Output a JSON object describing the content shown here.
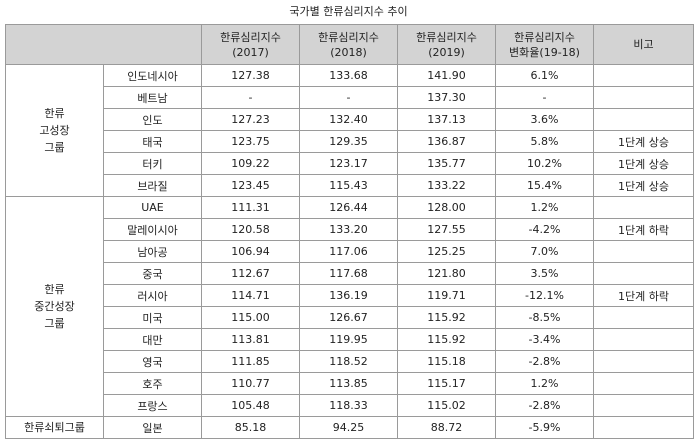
{
  "title": "국가별 한류심리지수 추이",
  "headers": {
    "col_2017": [
      "한류심리지수",
      "(2017)"
    ],
    "col_2018": [
      "한류심리지수",
      "(2018)"
    ],
    "col_2019": [
      "한류심리지수",
      "(2019)"
    ],
    "col_change": [
      "한류심리지수",
      "변화율(19-18)"
    ],
    "col_note": "비고"
  },
  "groups": [
    {
      "label": "한류\n고성장\n그룹",
      "rows": [
        {
          "country": "인도네시아",
          "v2017": "127.38",
          "v2018": "133.68",
          "v2019": "141.90",
          "change": "6.1%",
          "note": ""
        },
        {
          "country": "베트남",
          "v2017": "-",
          "v2018": "-",
          "v2019": "137.30",
          "change": "-",
          "note": ""
        },
        {
          "country": "인도",
          "v2017": "127.23",
          "v2018": "132.40",
          "v2019": "137.13",
          "change": "3.6%",
          "note": ""
        },
        {
          "country": "태국",
          "v2017": "123.75",
          "v2018": "129.35",
          "v2019": "136.87",
          "change": "5.8%",
          "note": "1단계 상승"
        },
        {
          "country": "터키",
          "v2017": "109.22",
          "v2018": "123.17",
          "v2019": "135.77",
          "change": "10.2%",
          "note": "1단계 상승"
        },
        {
          "country": "브라질",
          "v2017": "123.45",
          "v2018": "115.43",
          "v2019": "133.22",
          "change": "15.4%",
          "note": "1단계 상승"
        }
      ]
    },
    {
      "label": "한류\n중간성장\n그룹",
      "rows": [
        {
          "country": "UAE",
          "v2017": "111.31",
          "v2018": "126.44",
          "v2019": "128.00",
          "change": "1.2%",
          "note": ""
        },
        {
          "country": "말레이시아",
          "v2017": "120.58",
          "v2018": "133.20",
          "v2019": "127.55",
          "change": "-4.2%",
          "note": "1단계 하락"
        },
        {
          "country": "남아공",
          "v2017": "106.94",
          "v2018": "117.06",
          "v2019": "125.25",
          "change": "7.0%",
          "note": ""
        },
        {
          "country": "중국",
          "v2017": "112.67",
          "v2018": "117.68",
          "v2019": "121.80",
          "change": "3.5%",
          "note": ""
        },
        {
          "country": "러시아",
          "v2017": "114.71",
          "v2018": "136.19",
          "v2019": "119.71",
          "change": "-12.1%",
          "note": "1단계 하락"
        },
        {
          "country": "미국",
          "v2017": "115.00",
          "v2018": "126.67",
          "v2019": "115.92",
          "change": "-8.5%",
          "note": ""
        },
        {
          "country": "대만",
          "v2017": "113.81",
          "v2018": "119.95",
          "v2019": "115.92",
          "change": "-3.4%",
          "note": ""
        },
        {
          "country": "영국",
          "v2017": "111.85",
          "v2018": "118.52",
          "v2019": "115.18",
          "change": "-2.8%",
          "note": ""
        },
        {
          "country": "호주",
          "v2017": "110.77",
          "v2018": "113.85",
          "v2019": "115.17",
          "change": "1.2%",
          "note": ""
        },
        {
          "country": "프랑스",
          "v2017": "105.48",
          "v2018": "118.33",
          "v2019": "115.02",
          "change": "-2.8%",
          "note": ""
        }
      ]
    },
    {
      "label": "한류쇠퇴그룹",
      "rows": [
        {
          "country": "일본",
          "v2017": "85.18",
          "v2018": "94.25",
          "v2019": "88.72",
          "change": "-5.9%",
          "note": ""
        }
      ]
    }
  ]
}
